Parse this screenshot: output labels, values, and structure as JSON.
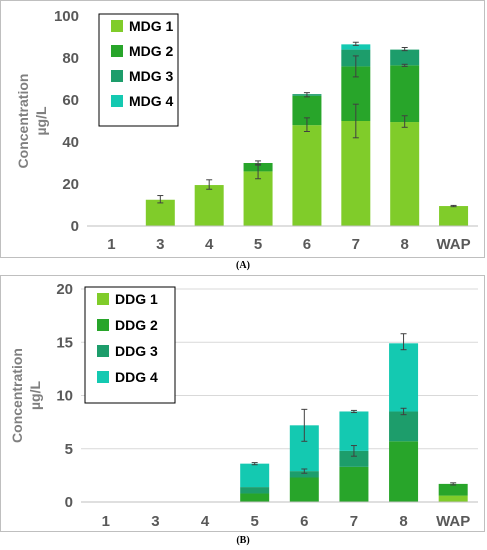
{
  "panel_labels": [
    "(A)",
    "(B)"
  ],
  "colors": {
    "s1": "#80cc2a",
    "s2": "#28a52a",
    "s3": "#1d9d6b",
    "s4": "#14c9b1",
    "axis": "#bfbfbf",
    "grid": "#d9d9d9",
    "error": "#404040"
  },
  "chart_data": [
    {
      "type": "bar",
      "stacked": true,
      "ylabel_lines": [
        "Concentration",
        "µg/L"
      ],
      "categories": [
        "1",
        "3",
        "4",
        "5",
        "6",
        "7",
        "8",
        "WAP"
      ],
      "ylim": [
        0,
        100
      ],
      "yticks": [
        0,
        20,
        40,
        60,
        80,
        100
      ],
      "legend_position": "top-left",
      "grid": false,
      "series": [
        {
          "name": "MDG 1",
          "values": [
            0,
            12.5,
            19.5,
            26,
            48,
            50,
            49.5,
            9.5
          ]
        },
        {
          "name": "MDG 2",
          "values": [
            0,
            0,
            0,
            4,
            14,
            26,
            27,
            0
          ]
        },
        {
          "name": "MDG 3",
          "values": [
            0,
            0,
            0,
            0,
            0.8,
            8,
            7.5,
            0
          ]
        },
        {
          "name": "MDG 4",
          "values": [
            0,
            0,
            0,
            0,
            0,
            2.5,
            0,
            0
          ]
        }
      ],
      "error_bars": [
        {
          "category": "3",
          "center": 12.5,
          "low": 11,
          "high": 14.5
        },
        {
          "category": "4",
          "center": 19.5,
          "low": 17.5,
          "high": 22
        },
        {
          "category": "5",
          "center": 26,
          "low": 22.5,
          "high": 29.5
        },
        {
          "category": "5",
          "center": 30,
          "low": 29,
          "high": 31
        },
        {
          "category": "6",
          "center": 48,
          "low": 45,
          "high": 51.5
        },
        {
          "category": "6",
          "center": 62.5,
          "low": 61.5,
          "high": 63.5
        },
        {
          "category": "7",
          "center": 50,
          "low": 42,
          "high": 58
        },
        {
          "category": "7",
          "center": 76,
          "low": 71,
          "high": 81
        },
        {
          "category": "7",
          "center": 86.5,
          "low": 86,
          "high": 87.5
        },
        {
          "category": "8",
          "center": 49.5,
          "low": 47,
          "high": 52.5
        },
        {
          "category": "8",
          "center": 76.5,
          "low": 76,
          "high": 77
        },
        {
          "category": "8",
          "center": 84,
          "low": 83.5,
          "high": 85
        },
        {
          "category": "WAP",
          "center": 9.5,
          "low": 9.2,
          "high": 9.8
        }
      ]
    },
    {
      "type": "bar",
      "stacked": true,
      "ylabel_lines": [
        "Concentration",
        "µg/L"
      ],
      "categories": [
        "1",
        "3",
        "4",
        "5",
        "6",
        "7",
        "8",
        "WAP"
      ],
      "ylim": [
        0,
        20
      ],
      "yticks": [
        0,
        5,
        10,
        15,
        20
      ],
      "legend_position": "top-left",
      "grid": true,
      "series": [
        {
          "name": "DDG 1",
          "values": [
            0,
            0,
            0,
            0,
            0,
            0,
            0,
            0.6
          ]
        },
        {
          "name": "DDG 2",
          "values": [
            0,
            0,
            0,
            0.8,
            2.3,
            3.3,
            5.7,
            1.1
          ]
        },
        {
          "name": "DDG 3",
          "values": [
            0,
            0,
            0,
            0.6,
            0.6,
            1.5,
            2.8,
            0
          ]
        },
        {
          "name": "DDG 4",
          "values": [
            0,
            0,
            0,
            2.2,
            4.3,
            3.7,
            6.4,
            0
          ]
        }
      ],
      "error_bars": [
        {
          "category": "5",
          "center": 3.6,
          "low": 3.5,
          "high": 3.7
        },
        {
          "category": "6",
          "center": 2.9,
          "low": 2.7,
          "high": 3.1
        },
        {
          "category": "6",
          "center": 7.2,
          "low": 5.7,
          "high": 8.7
        },
        {
          "category": "7",
          "center": 4.8,
          "low": 4.3,
          "high": 5.3
        },
        {
          "category": "7",
          "center": 8.5,
          "low": 8.4,
          "high": 8.6
        },
        {
          "category": "8",
          "center": 8.5,
          "low": 8.2,
          "high": 8.8
        },
        {
          "category": "8",
          "center": 14.9,
          "low": 14.3,
          "high": 15.8
        },
        {
          "category": "WAP",
          "center": 1.7,
          "low": 1.6,
          "high": 1.8
        }
      ]
    }
  ]
}
